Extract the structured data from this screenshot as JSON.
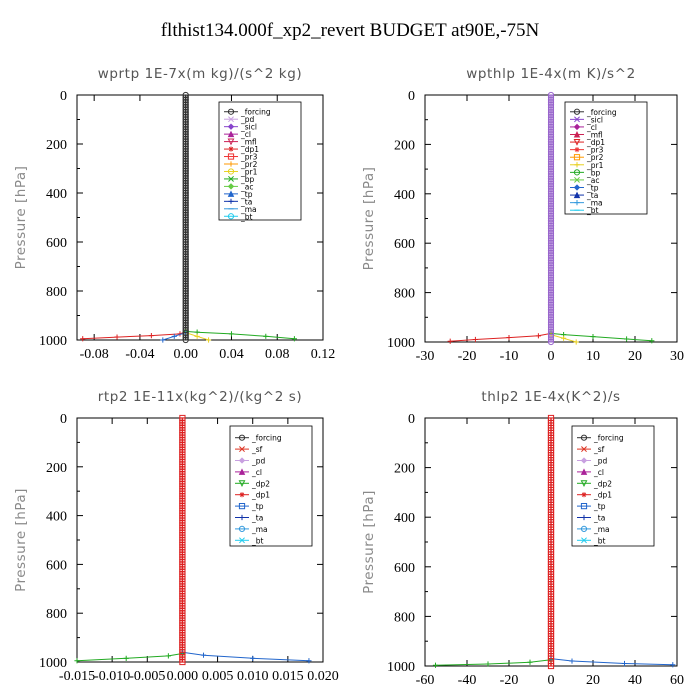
{
  "page_title": "flthist134.000f_xp2_revert  BUDGET at90E,-75N",
  "chart_data": [
    {
      "type": "line",
      "title": "wprtp   1E-7x(m kg)/(s^2 kg)",
      "ylabel": "Pressure [hPa]",
      "xlim": [
        -0.095,
        0.12
      ],
      "ylim": [
        1000,
        0
      ],
      "xticks": [
        -0.08,
        -0.04,
        0.0,
        0.04,
        0.08,
        0.12
      ],
      "xtick_labels": [
        "-0.08",
        "-0.04",
        "0.00",
        "0.04",
        "0.08",
        "0.12"
      ],
      "yticks": [
        0,
        200,
        400,
        600,
        800,
        1000
      ],
      "legend_position": "top-right",
      "legend": [
        "_forcing",
        "_pd",
        "_sicl",
        "_cl",
        "_mfl",
        "_dp1",
        "_pr3",
        "_pr2",
        "_pr1",
        "_bp",
        "_ac",
        "_tp",
        "_ta",
        "_ma",
        "_bt"
      ],
      "series": [
        {
          "name": "_forcing",
          "color": "#333333",
          "x": [
            0,
            0,
            0,
            0
          ],
          "y": [
            0,
            400,
            800,
            1000
          ]
        },
        {
          "name": "_dp1",
          "color": "#dd2222",
          "x": [
            0,
            -0.005,
            -0.03,
            -0.06,
            -0.09
          ],
          "y": [
            965,
            975,
            982,
            988,
            995
          ]
        },
        {
          "name": "_bp",
          "color": "#22aa22",
          "x": [
            0,
            0.01,
            0.04,
            0.07,
            0.095
          ],
          "y": [
            965,
            968,
            975,
            985,
            995
          ]
        },
        {
          "name": "_pr1",
          "color": "#e8d020",
          "x": [
            0,
            0.01,
            0.02
          ],
          "y": [
            970,
            985,
            1000
          ]
        },
        {
          "name": "_tp",
          "color": "#2266cc",
          "x": [
            0,
            -0.01,
            -0.02
          ],
          "y": [
            970,
            985,
            1000
          ]
        }
      ]
    },
    {
      "type": "line",
      "title": "wpthlp   1E-4x(m K)/s^2",
      "ylabel": "Pressure [hPa]",
      "xlim": [
        -30,
        30
      ],
      "ylim": [
        1000,
        0
      ],
      "xticks": [
        -30,
        -20,
        -10,
        0,
        10,
        20,
        30
      ],
      "xtick_labels": [
        "-30",
        "-20",
        "-10",
        "0",
        "10",
        "20",
        "30"
      ],
      "yticks": [
        0,
        200,
        400,
        600,
        800,
        1000
      ],
      "legend_position": "top-right",
      "legend": [
        "_forcing",
        "_sicl",
        "_cl",
        "_mfl",
        "_dp1",
        "_pr3",
        "_pr2",
        "_pr1",
        "_bp",
        "_ac",
        "_tp",
        "_ta",
        "_ma",
        "_bt"
      ],
      "series": [
        {
          "name": "_forcing",
          "color": "#9966cc",
          "x": [
            0,
            0,
            0,
            0
          ],
          "y": [
            0,
            400,
            800,
            1000
          ]
        },
        {
          "name": "_dp1",
          "color": "#dd2222",
          "x": [
            0,
            -3,
            -10,
            -18,
            -24
          ],
          "y": [
            965,
            975,
            982,
            990,
            997
          ]
        },
        {
          "name": "_bp",
          "color": "#22aa22",
          "x": [
            0,
            3,
            10,
            18,
            24
          ],
          "y": [
            965,
            970,
            978,
            988,
            995
          ]
        },
        {
          "name": "_pr1",
          "color": "#e8d020",
          "x": [
            0,
            3,
            6
          ],
          "y": [
            970,
            985,
            1000
          ]
        }
      ]
    },
    {
      "type": "line",
      "title": "rtp2   1E-11x(kg^2)/(kg^2 s)",
      "ylabel": "Pressure [hPa]",
      "xlim": [
        -0.015,
        0.02
      ],
      "ylim": [
        1000,
        0
      ],
      "xticks": [
        -0.015,
        -0.01,
        -0.005,
        0.0,
        0.005,
        0.01,
        0.015,
        0.02
      ],
      "xtick_labels": [
        "-0.015",
        "-0.010",
        "-0.005",
        "0.000",
        "0.005",
        "0.010",
        "0.015",
        "0.020"
      ],
      "yticks": [
        0,
        200,
        400,
        600,
        800,
        1000
      ],
      "legend_position": "top-right",
      "legend": [
        "_forcing",
        "_sf",
        "_pd",
        "_cl",
        "_dp2",
        "_dp1",
        "_tp",
        "_ta",
        "_ma",
        "_bt"
      ],
      "series": [
        {
          "name": "_forcing",
          "color": "#dd2222",
          "x": [
            0,
            0,
            0,
            0
          ],
          "y": [
            0,
            400,
            800,
            1000
          ]
        },
        {
          "name": "_dp1",
          "color": "#22aa22",
          "x": [
            0,
            -0.002,
            -0.008,
            -0.015
          ],
          "y": [
            965,
            975,
            985,
            995
          ]
        },
        {
          "name": "_tp",
          "color": "#2266cc",
          "x": [
            0,
            0.003,
            0.01,
            0.018
          ],
          "y": [
            960,
            972,
            985,
            995
          ]
        }
      ]
    },
    {
      "type": "line",
      "title": "thlp2   1E-4x(K^2)/s",
      "ylabel": "Pressure [hPa]",
      "xlim": [
        -60,
        60
      ],
      "ylim": [
        1000,
        0
      ],
      "xticks": [
        -60,
        -40,
        -20,
        0,
        20,
        40,
        60
      ],
      "xtick_labels": [
        "-60",
        "-40",
        "-20",
        "0",
        "20",
        "40",
        "60"
      ],
      "yticks": [
        0,
        200,
        400,
        600,
        800,
        1000
      ],
      "legend_position": "top-right",
      "legend": [
        "_forcing",
        "_sf",
        "_pd",
        "_cl",
        "_dp2",
        "_dp1",
        "_tp",
        "_ta",
        "_ma",
        "_bt"
      ],
      "series": [
        {
          "name": "_forcing",
          "color": "#dd2222",
          "x": [
            0,
            0,
            0,
            0
          ],
          "y": [
            0,
            400,
            800,
            1000
          ]
        },
        {
          "name": "_dp1",
          "color": "#22aa22",
          "x": [
            0,
            -10,
            -30,
            -55
          ],
          "y": [
            975,
            985,
            992,
            997
          ]
        },
        {
          "name": "_tp",
          "color": "#2266cc",
          "x": [
            0,
            10,
            35,
            58
          ],
          "y": [
            970,
            980,
            990,
            995
          ]
        }
      ]
    }
  ],
  "legend_colors": {
    "_forcing": "#333333",
    "_pd": "#c8a0e0",
    "_sicl": "#8844cc",
    "_cl": "#aa2299",
    "_mfl": "#cc2255",
    "_dp1": "#dd2222",
    "_dp2": "#22aa22",
    "_pr3": "#ee3333",
    "_pr2": "#ff9900",
    "_pr1": "#e8d020",
    "_bp": "#22aa22",
    "_ac": "#66cc44",
    "_tp": "#2266cc",
    "_ta": "#1133aa",
    "_ma": "#3399dd",
    "_bt": "#22ccee",
    "_sf": "#dd3322"
  }
}
